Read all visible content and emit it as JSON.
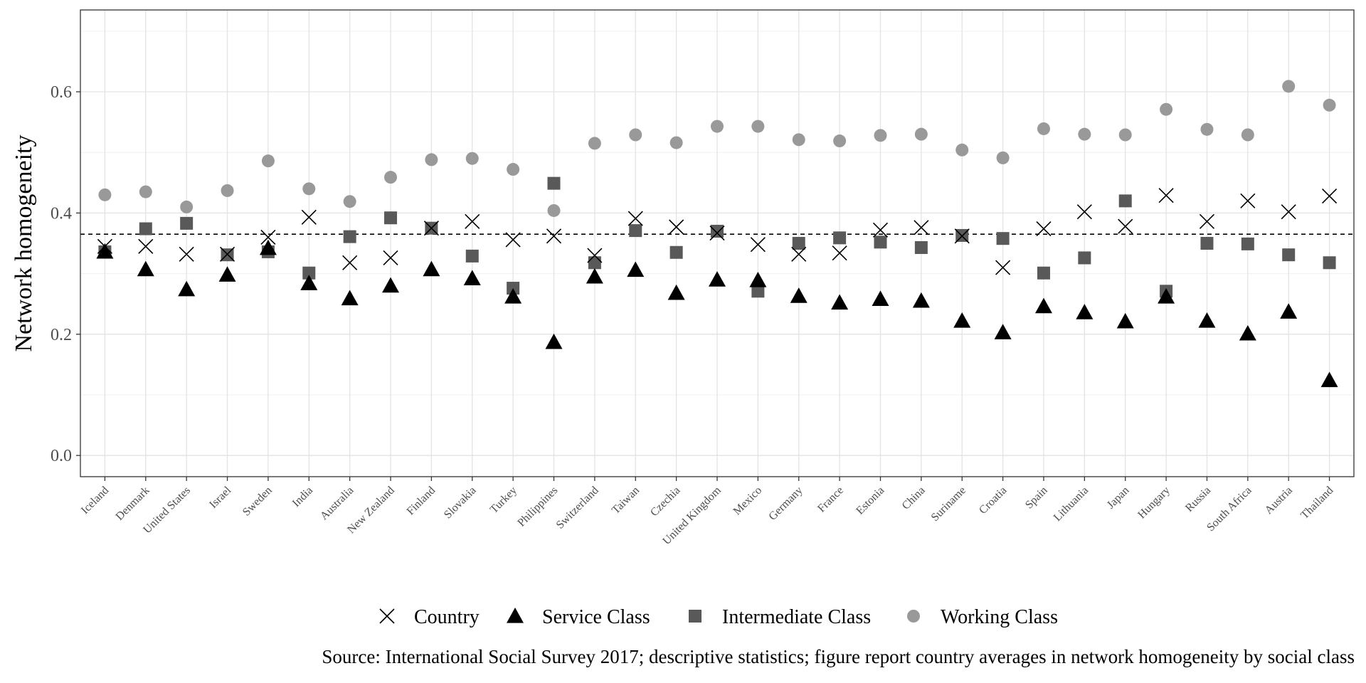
{
  "chart_data": {
    "type": "scatter",
    "ylabel": "Network homogeneity",
    "xlabel": "",
    "ylim": [
      -0.035,
      0.735
    ],
    "yticks": [
      0.0,
      0.2,
      0.4,
      0.6
    ],
    "ytick_labels": [
      "0.0",
      "0.2",
      "0.4",
      "0.6"
    ],
    "grid": true,
    "legend_position": "bottom",
    "reference_line": {
      "y": 0.365,
      "style": "dashed"
    },
    "categories": [
      "Iceland",
      "Denmark",
      "United States",
      "Israel",
      "Sweden",
      "India",
      "Australia",
      "New Zealand",
      "Finland",
      "Slovakia",
      "Turkey",
      "Philippines",
      "Switzerland",
      "Taiwan",
      "Czechia",
      "United Kingdom",
      "Mexico",
      "Germany",
      "France",
      "Estonia",
      "China",
      "Suriname",
      "Croatia",
      "Spain",
      "Lithuania",
      "Japan",
      "Hungary",
      "Russia",
      "South Africa",
      "Austria",
      "Thailand"
    ],
    "series": [
      {
        "name": "Country",
        "marker": "x",
        "color": "#000000",
        "values": [
          0.345,
          0.345,
          0.332,
          0.332,
          0.36,
          0.393,
          0.318,
          0.326,
          0.375,
          0.386,
          0.356,
          0.362,
          0.33,
          0.391,
          0.377,
          0.367,
          0.348,
          0.332,
          0.334,
          0.372,
          0.376,
          0.362,
          0.31,
          0.374,
          0.402,
          0.378,
          0.429,
          0.386,
          0.42,
          0.402,
          0.428
        ]
      },
      {
        "name": "Service Class",
        "marker": "triangle",
        "color": "#000000",
        "values": [
          0.336,
          0.307,
          0.274,
          0.298,
          0.342,
          0.284,
          0.259,
          0.28,
          0.307,
          0.292,
          0.262,
          0.187,
          0.295,
          0.306,
          0.268,
          0.29,
          0.289,
          0.263,
          0.252,
          0.258,
          0.255,
          0.222,
          0.203,
          0.246,
          0.236,
          0.221,
          0.262,
          0.222,
          0.201,
          0.237,
          0.124
        ]
      },
      {
        "name": "Intermediate Class",
        "marker": "square",
        "color": "#595959",
        "values": [
          0.336,
          0.374,
          0.383,
          0.331,
          0.336,
          0.301,
          0.361,
          0.392,
          0.375,
          0.329,
          0.276,
          0.449,
          0.318,
          0.371,
          0.335,
          0.37,
          0.271,
          0.35,
          0.359,
          0.352,
          0.343,
          0.363,
          0.358,
          0.301,
          0.326,
          0.42,
          0.271,
          0.35,
          0.349,
          0.331,
          0.318
        ]
      },
      {
        "name": "Working Class",
        "marker": "circle",
        "color": "#999999",
        "values": [
          0.43,
          0.435,
          0.41,
          0.437,
          0.486,
          0.44,
          0.419,
          0.459,
          0.488,
          0.49,
          0.472,
          0.404,
          0.515,
          0.529,
          0.516,
          0.543,
          0.543,
          0.521,
          0.519,
          0.528,
          0.53,
          0.504,
          0.491,
          0.539,
          0.53,
          0.529,
          0.571,
          0.538,
          0.529,
          0.609,
          0.578
        ]
      }
    ]
  },
  "caption": "Source: International Social Survey 2017; descriptive statistics; figure report country averages in network homogeneity by social class"
}
